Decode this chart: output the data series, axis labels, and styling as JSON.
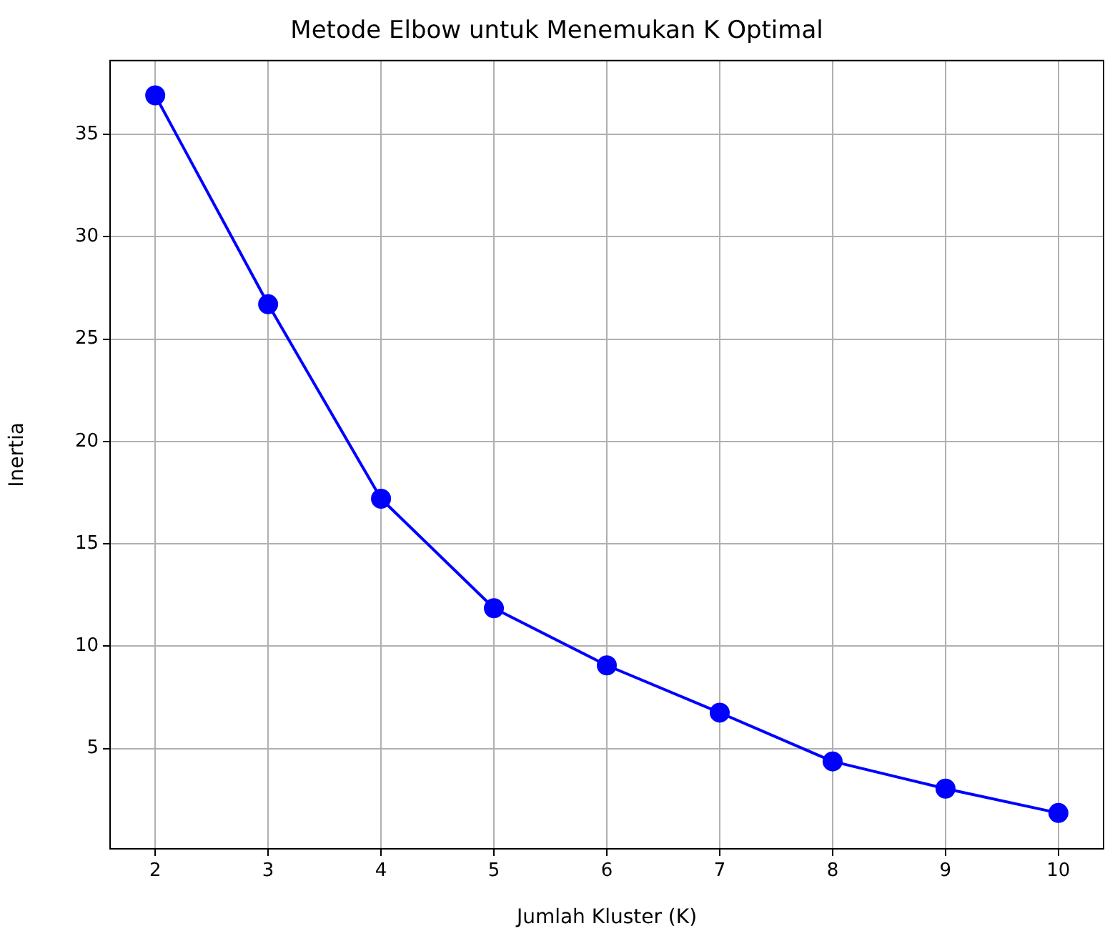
{
  "chart_data": {
    "type": "line",
    "title": "Metode Elbow untuk Menemukan K Optimal",
    "xlabel": "Jumlah Kluster (K)",
    "ylabel": "Inertia",
    "x": [
      2,
      3,
      4,
      5,
      6,
      7,
      8,
      9,
      10
    ],
    "series": [
      {
        "color": "#0000ff",
        "values": [
          36.9,
          26.7,
          17.2,
          11.85,
          9.06,
          6.75,
          4.37,
          3.04,
          1.85
        ]
      }
    ],
    "xlim": [
      1.6,
      10.4
    ],
    "xticks": [
      2,
      3,
      4,
      5,
      6,
      7,
      8,
      9,
      10
    ],
    "ylim": [
      0.1,
      38.6
    ],
    "yticks": [
      5,
      10,
      15,
      20,
      25,
      30,
      35
    ],
    "grid": true,
    "legend": false,
    "marker": "circle",
    "line_style": "solid"
  }
}
